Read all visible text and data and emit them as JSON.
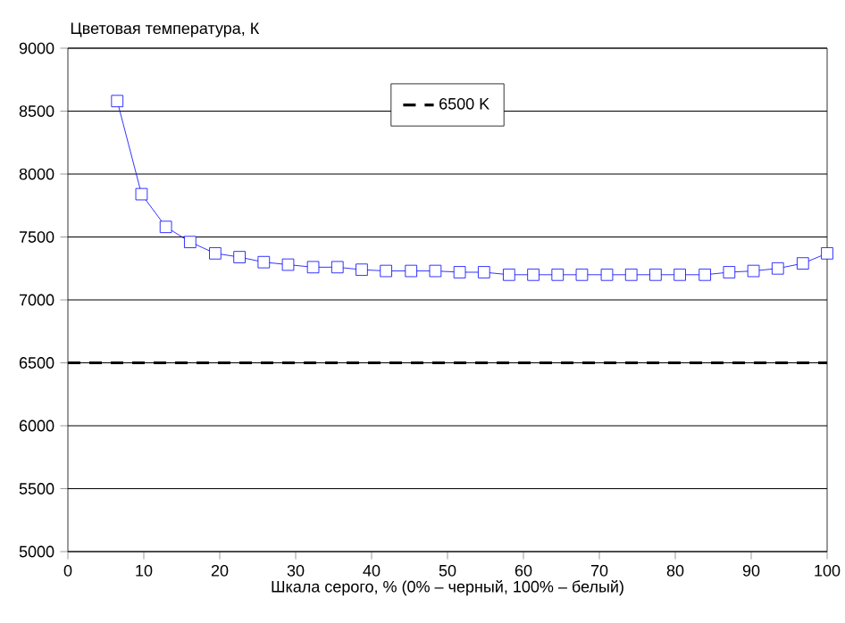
{
  "chart_data": {
    "type": "line",
    "xlabel": "Шкала серого, % (0% – черный, 100% – белый)",
    "ylabel": "Цветовая температура, К",
    "x": [
      6.5,
      9.7,
      12.9,
      16.1,
      19.4,
      22.6,
      25.8,
      29.0,
      32.3,
      35.5,
      38.7,
      41.9,
      45.2,
      48.4,
      51.6,
      54.8,
      58.1,
      61.3,
      64.5,
      67.7,
      71.0,
      74.2,
      77.4,
      80.6,
      83.9,
      87.1,
      90.3,
      93.5,
      96.8,
      100
    ],
    "series": [
      {
        "color": "#0000ff",
        "values": [
          8580,
          7840,
          7580,
          7460,
          7370,
          7340,
          7300,
          7280,
          7260,
          7260,
          7240,
          7230,
          7230,
          7230,
          7220,
          7220,
          7200,
          7200,
          7200,
          7200,
          7200,
          7200,
          7200,
          7200,
          7200,
          7220,
          7230,
          7250,
          7290,
          7370
        ]
      }
    ],
    "ref_lines": [
      {
        "axis": "y",
        "value": 6500,
        "label": "6500 K",
        "color": "#000000",
        "line_style": "dashed"
      }
    ],
    "xlim": [
      0,
      100
    ],
    "ylim": [
      5000,
      9000
    ],
    "xticks": [
      0,
      10,
      20,
      30,
      40,
      50,
      60,
      70,
      80,
      90,
      100
    ],
    "yticks": [
      5000,
      5500,
      6000,
      6500,
      7000,
      7500,
      8000,
      8500,
      9000
    ],
    "grid": "y",
    "legend": "top",
    "marker": "square",
    "line_style": "solid"
  }
}
